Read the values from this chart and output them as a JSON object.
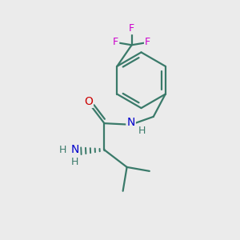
{
  "bg_color": "#ebebeb",
  "bond_color": "#3a7a6a",
  "atom_colors": {
    "N": "#0000cc",
    "O": "#cc0000",
    "F": "#cc00cc",
    "H": "#3a7a6a"
  },
  "bond_width": 1.6,
  "figsize": [
    3.0,
    3.0
  ],
  "dpi": 100
}
